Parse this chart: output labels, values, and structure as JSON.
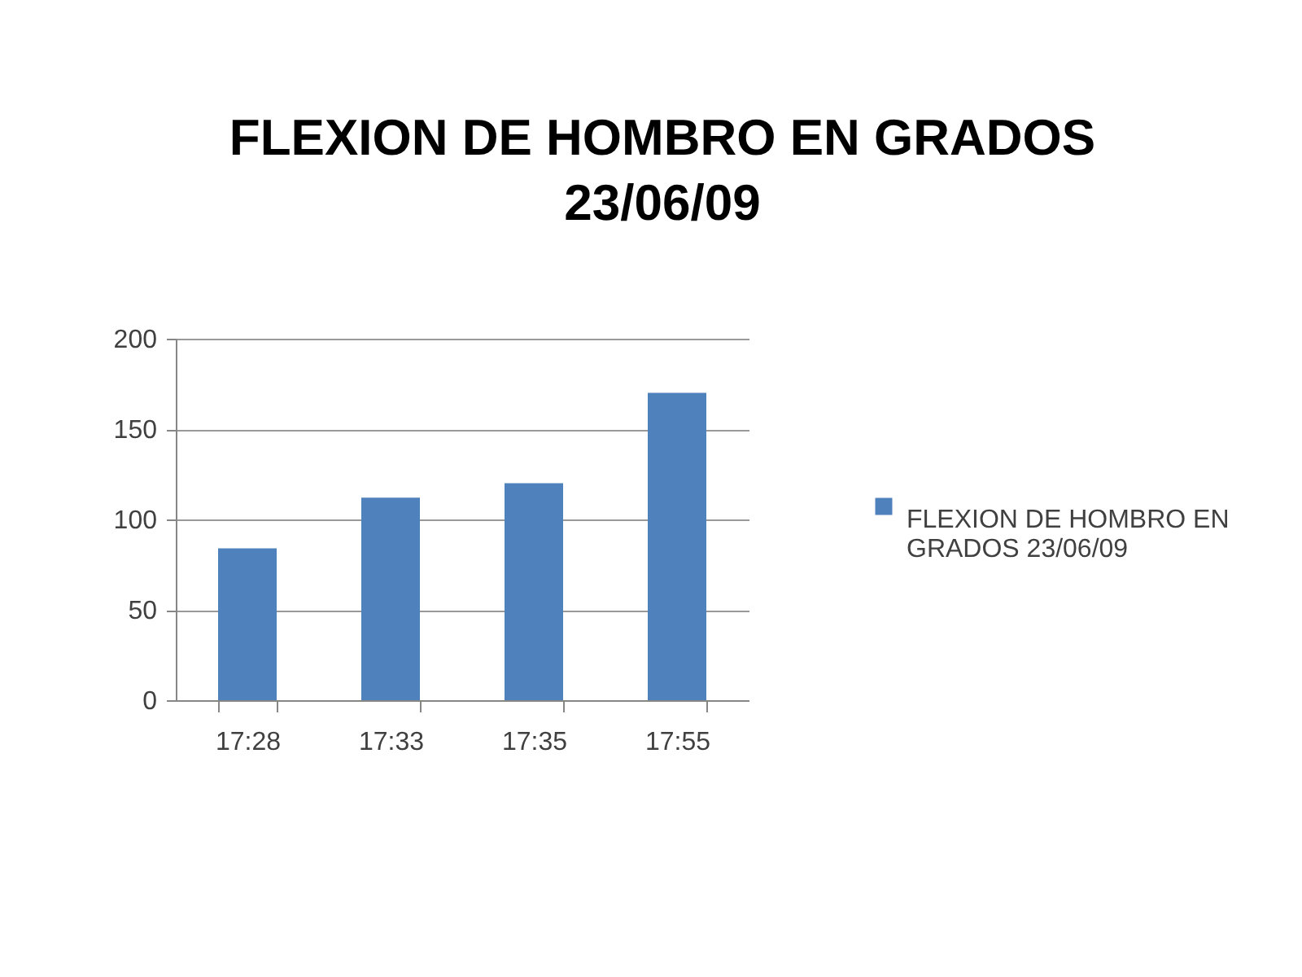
{
  "chart_data": {
    "type": "bar",
    "title": "FLEXION DE HOMBRO EN GRADOS 23/06/09",
    "categories": [
      "17:28",
      "17:33",
      "17:35",
      "17:55"
    ],
    "series": [
      {
        "name": "FLEXION DE HOMBRO EN GRADOS 23/06/09",
        "color": "#4f81bd",
        "values": [
          84,
          112,
          120,
          170
        ]
      }
    ],
    "ylim": [
      0,
      200
    ],
    "yticks": [
      0,
      50,
      100,
      150,
      200
    ],
    "grid": "y",
    "legend": "right"
  }
}
